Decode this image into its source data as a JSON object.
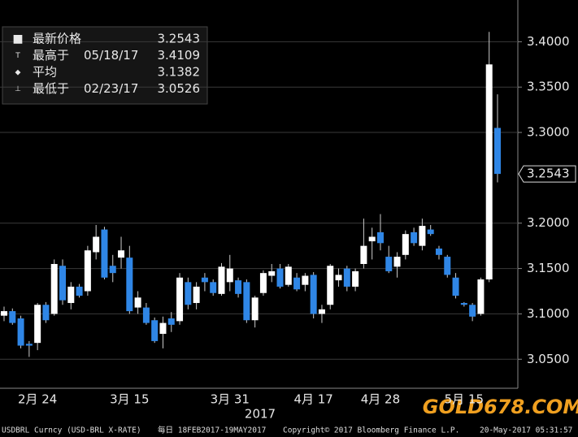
{
  "chart_data": {
    "type": "candlestick",
    "categories": [
      null,
      null,
      null,
      null,
      "2月 24",
      null,
      null,
      null,
      null,
      null,
      null,
      null,
      null,
      null,
      null,
      "3月 15",
      null,
      null,
      null,
      null,
      null,
      null,
      null,
      null,
      null,
      null,
      null,
      "3月 31",
      null,
      null,
      null,
      null,
      null,
      null,
      null,
      null,
      null,
      "4月 17",
      null,
      null,
      null,
      null,
      null,
      null,
      null,
      "4月 28",
      null,
      null,
      null,
      null,
      null,
      null,
      null,
      null,
      null,
      "5月 15",
      null,
      null,
      null,
      null
    ],
    "year_label": "2017",
    "series": [
      {
        "up_color": "#ffffff",
        "down_color": "#2f86e6",
        "open": [
          3.098,
          3.103,
          3.095,
          3.067,
          3.068,
          3.11,
          3.1,
          3.153,
          3.112,
          3.13,
          3.125,
          3.168,
          3.193,
          3.153,
          3.162,
          3.162,
          3.107,
          3.107,
          3.093,
          3.078,
          3.095,
          3.092,
          3.135,
          3.112,
          3.14,
          3.135,
          3.122,
          3.135,
          3.137,
          3.135,
          3.093,
          3.123,
          3.142,
          3.15,
          3.132,
          3.14,
          3.132,
          3.143,
          3.1,
          3.11,
          3.137,
          3.15,
          3.13,
          3.155,
          3.18,
          3.19,
          3.163,
          3.152,
          3.165,
          3.19,
          3.175,
          3.193,
          3.172,
          3.163,
          3.14,
          3.112,
          3.11,
          3.1,
          3.138,
          3.305
        ],
        "high": [
          3.108,
          3.106,
          3.098,
          3.07,
          3.112,
          3.113,
          3.16,
          3.16,
          3.135,
          3.133,
          3.175,
          3.198,
          3.196,
          3.165,
          3.185,
          3.175,
          3.125,
          3.112,
          3.096,
          3.097,
          3.102,
          3.145,
          3.14,
          3.135,
          3.145,
          3.138,
          3.156,
          3.165,
          3.14,
          3.138,
          3.12,
          3.148,
          3.155,
          3.155,
          3.155,
          3.145,
          3.145,
          3.146,
          3.11,
          3.155,
          3.15,
          3.153,
          3.15,
          3.205,
          3.195,
          3.21,
          3.175,
          3.168,
          3.192,
          3.195,
          3.205,
          3.198,
          3.175,
          3.165,
          3.145,
          3.113,
          3.112,
          3.14,
          3.4109,
          3.342
        ],
        "low": [
          3.092,
          3.088,
          3.062,
          3.0526,
          3.06,
          3.09,
          3.098,
          3.11,
          3.105,
          3.118,
          3.12,
          3.16,
          3.138,
          3.135,
          3.15,
          3.1,
          3.1,
          3.088,
          3.068,
          3.062,
          3.08,
          3.088,
          3.105,
          3.105,
          3.125,
          3.12,
          3.12,
          3.125,
          3.118,
          3.09,
          3.085,
          3.12,
          3.135,
          3.128,
          3.13,
          3.125,
          3.125,
          3.095,
          3.09,
          3.105,
          3.13,
          3.125,
          3.125,
          3.15,
          3.16,
          3.17,
          3.145,
          3.14,
          3.16,
          3.175,
          3.17,
          3.186,
          3.16,
          3.14,
          3.117,
          3.108,
          3.092,
          3.098,
          3.135,
          3.245
        ],
        "close": [
          3.103,
          3.09,
          3.065,
          3.065,
          3.11,
          3.093,
          3.155,
          3.115,
          3.13,
          3.12,
          3.17,
          3.185,
          3.14,
          3.145,
          3.17,
          3.103,
          3.118,
          3.09,
          3.07,
          3.09,
          3.088,
          3.14,
          3.11,
          3.13,
          3.135,
          3.123,
          3.152,
          3.15,
          3.122,
          3.093,
          3.118,
          3.145,
          3.147,
          3.13,
          3.152,
          3.127,
          3.142,
          3.1,
          3.105,
          3.153,
          3.143,
          3.13,
          3.147,
          3.175,
          3.185,
          3.178,
          3.147,
          3.163,
          3.188,
          3.178,
          3.197,
          3.188,
          3.165,
          3.143,
          3.12,
          3.11,
          3.097,
          3.138,
          3.375,
          3.2543
        ]
      }
    ],
    "ylim": [
      3.018,
      3.446
    ],
    "yticks": [
      {
        "value": 3.05,
        "label": "3.0500"
      },
      {
        "value": 3.1,
        "label": "3.1000"
      },
      {
        "value": 3.15,
        "label": "3.1500"
      },
      {
        "value": 3.2,
        "label": "3.2000"
      },
      {
        "value": 3.3,
        "label": "3.3000"
      },
      {
        "value": 3.35,
        "label": "3.3500"
      },
      {
        "value": 3.4,
        "label": "3.4000"
      }
    ],
    "grid": true,
    "stats": [
      {
        "label": "最新价格",
        "date": null,
        "value": 3.2543
      },
      {
        "label": "最高于",
        "date": "05/18/17",
        "value": 3.4109
      },
      {
        "label": "平均",
        "date": null,
        "value": 3.1382
      },
      {
        "label": "最低于",
        "date": "02/23/17",
        "value": 3.0526
      }
    ],
    "footer": [
      "USDBRL Curncy (USD-BRL X-RATE)",
      "每日 18FEB2017-19MAY2017",
      "Copyright© 2017 Bloomberg Finance L.P.",
      "20-May-2017 05:31:57"
    ],
    "watermark": "GOLD678.COM"
  }
}
